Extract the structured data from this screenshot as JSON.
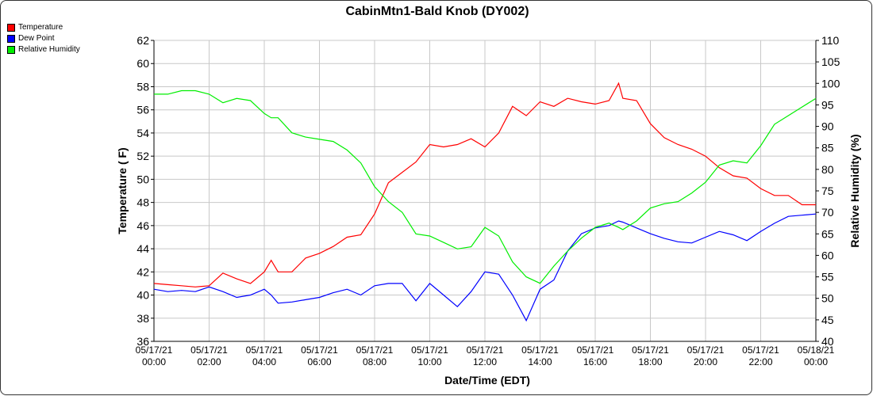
{
  "chart_data": {
    "type": "line",
    "title": "CabinMtn1-Bald Knob (DY002)",
    "xlabel": "Date/Time (EDT)",
    "ylabel": "Temperature ( F)",
    "y2label": "Relative Humidity (%)",
    "ylim": [
      36,
      62
    ],
    "y2lim": [
      40,
      110
    ],
    "grid": true,
    "legend": "top-left",
    "x_hours": [
      0,
      0.5,
      1,
      1.5,
      2,
      2.5,
      3,
      3.5,
      4,
      4.25,
      4.5,
      5,
      5.5,
      6,
      6.5,
      7,
      7.5,
      8,
      8.5,
      9,
      9.5,
      10,
      10.5,
      11,
      11.5,
      12,
      12.5,
      13,
      13.5,
      14,
      14.5,
      15,
      15.5,
      16,
      16.5,
      16.85,
      17,
      17.5,
      18,
      18.5,
      19,
      19.5,
      20,
      20.5,
      21,
      21.5,
      22,
      22.5,
      23,
      23.5,
      24
    ],
    "xticks": [
      [
        "05/17/21",
        "00:00"
      ],
      [
        "05/17/21",
        "02:00"
      ],
      [
        "05/17/21",
        "04:00"
      ],
      [
        "05/17/21",
        "06:00"
      ],
      [
        "05/17/21",
        "08:00"
      ],
      [
        "05/17/21",
        "10:00"
      ],
      [
        "05/17/21",
        "12:00"
      ],
      [
        "05/17/21",
        "14:00"
      ],
      [
        "05/17/21",
        "16:00"
      ],
      [
        "05/17/21",
        "18:00"
      ],
      [
        "05/17/21",
        "20:00"
      ],
      [
        "05/17/21",
        "22:00"
      ],
      [
        "05/18/21",
        "00:00"
      ]
    ],
    "yticks": [
      36,
      38,
      40,
      42,
      44,
      46,
      48,
      50,
      52,
      54,
      56,
      58,
      60,
      62
    ],
    "y2ticks": [
      40,
      45,
      50,
      55,
      60,
      65,
      70,
      75,
      80,
      85,
      90,
      95,
      100,
      105,
      110
    ],
    "series": [
      {
        "name": "Temperature",
        "color": "#ff0000",
        "axis": "left",
        "values": [
          41.0,
          40.9,
          40.8,
          40.7,
          40.8,
          41.9,
          41.4,
          41.0,
          42.0,
          43.0,
          42.0,
          42.0,
          43.2,
          43.6,
          44.2,
          45.0,
          45.2,
          47.0,
          49.7,
          50.6,
          51.5,
          53.0,
          52.8,
          53.0,
          53.5,
          52.8,
          54.0,
          56.3,
          55.5,
          56.7,
          56.3,
          57.0,
          56.7,
          56.5,
          56.8,
          58.3,
          57.0,
          56.8,
          54.8,
          53.6,
          53.0,
          52.6,
          52.0,
          51.0,
          50.3,
          50.1,
          49.2,
          48.6,
          48.6,
          47.8,
          47.8
        ]
      },
      {
        "name": "Dew Point",
        "color": "#0000ff",
        "axis": "left",
        "values": [
          40.5,
          40.3,
          40.4,
          40.3,
          40.7,
          40.3,
          39.8,
          40.0,
          40.5,
          40.0,
          39.3,
          39.4,
          39.6,
          39.8,
          40.2,
          40.5,
          40.0,
          40.8,
          41.0,
          41.0,
          39.5,
          41.0,
          40.0,
          39.0,
          40.3,
          42.0,
          41.8,
          40.0,
          37.8,
          40.5,
          41.3,
          43.8,
          45.3,
          45.8,
          46.0,
          46.4,
          46.3,
          45.8,
          45.3,
          44.9,
          44.6,
          44.5,
          45.0,
          45.5,
          45.2,
          44.7,
          45.5,
          46.2,
          46.8,
          46.9,
          47.0
        ]
      },
      {
        "name": "Relative Humidity",
        "color": "#00ee00",
        "axis": "right",
        "values": [
          97.5,
          97.5,
          98.3,
          98.3,
          97.5,
          95.5,
          96.5,
          96.0,
          93.0,
          92.0,
          92.0,
          88.5,
          87.5,
          87.0,
          86.5,
          84.5,
          81.5,
          76.0,
          72.5,
          70.0,
          65.0,
          64.5,
          63.0,
          61.5,
          62.0,
          66.5,
          64.5,
          58.5,
          55.0,
          53.5,
          57.5,
          61.0,
          64.0,
          66.5,
          67.5,
          66.5,
          66.0,
          68.0,
          71.0,
          72.0,
          72.5,
          74.5,
          77.0,
          81.0,
          82.0,
          81.5,
          85.5,
          90.5,
          92.5,
          94.5,
          96.5
        ]
      }
    ]
  }
}
